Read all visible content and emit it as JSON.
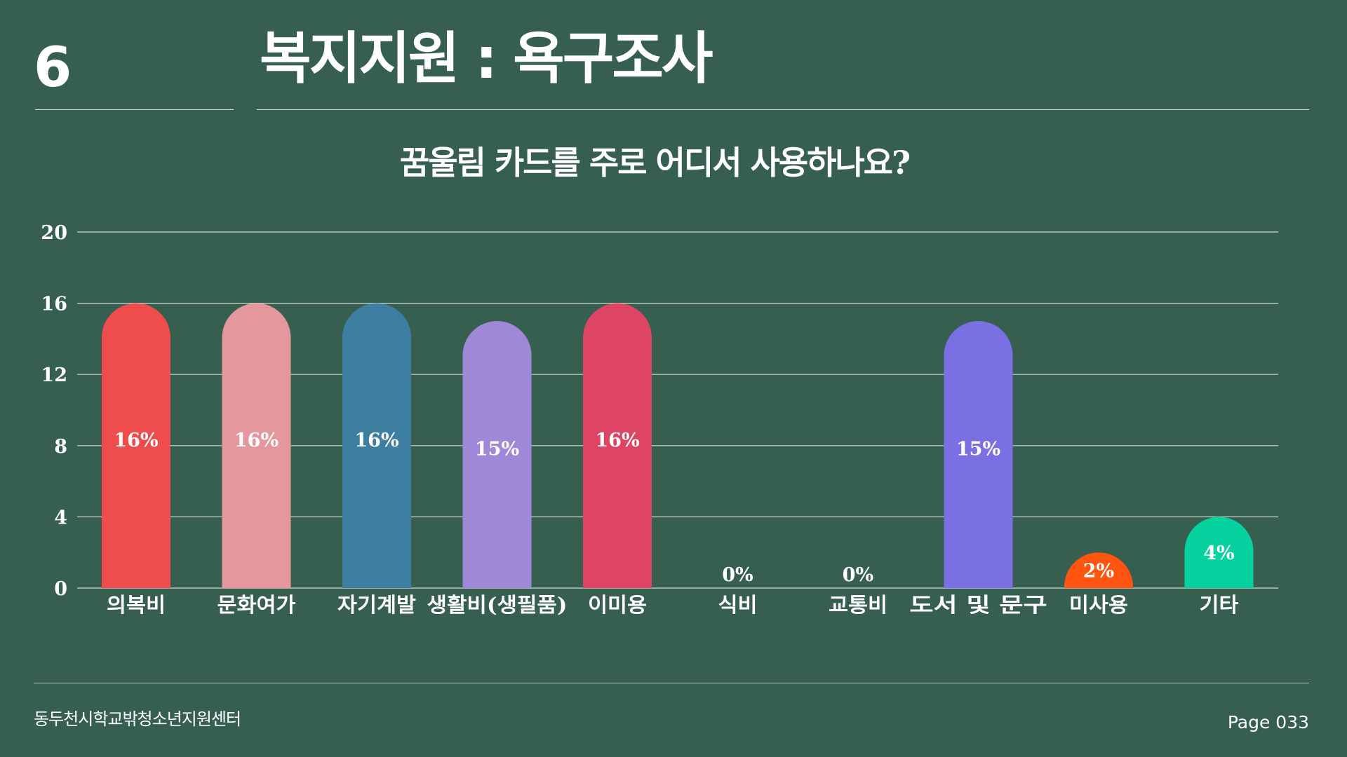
{
  "slide_number": "6",
  "page_title": "복지지원 : 욕구조사",
  "chart_data": {
    "type": "bar",
    "title": "꿈울림 카드를 주로 어디서 사용하나요?",
    "xlabel": "",
    "ylabel": "",
    "ylim": [
      0,
      20
    ],
    "yticks": [
      "0",
      "4",
      "8",
      "12",
      "16",
      "20"
    ],
    "grid": true,
    "categories": [
      "의복비",
      "문화여가",
      "자기계발",
      "생활비(생필품)",
      "이미용",
      "식비",
      "교통비",
      "도서 및 문구",
      "미사용",
      "기타"
    ],
    "values": [
      16,
      16,
      16,
      15,
      16,
      0,
      0,
      15,
      2,
      4
    ],
    "data_labels": [
      "16%",
      "16%",
      "16%",
      "15%",
      "16%",
      "0%",
      "0%",
      "15%",
      "2%",
      "4%"
    ],
    "colors": [
      "#ef4d4d",
      "#e4979c",
      "#3e7ea0",
      "#9f88d8",
      "#de4464",
      "#365f50",
      "#365f50",
      "#7b70e3",
      "#ff5511",
      "#05d29e"
    ]
  },
  "footer": {
    "organization": "동두천시학교밖청소년지원센터",
    "page_label": "Page 033"
  }
}
